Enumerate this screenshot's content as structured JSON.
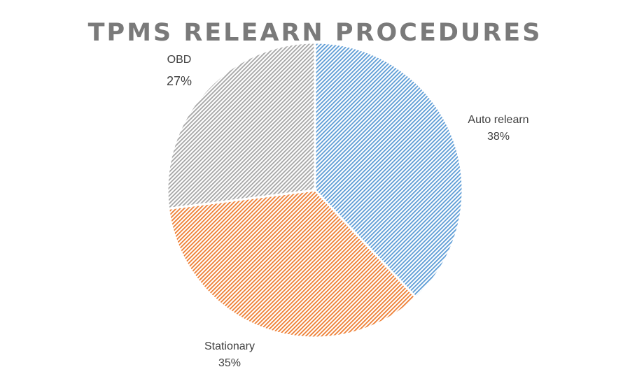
{
  "chart_data": {
    "type": "pie",
    "title": "TPMS RELEARN PROCEDURES",
    "slices": [
      {
        "name": "Auto relearn",
        "value": 38,
        "label": "38%",
        "color": "#5b9bd5"
      },
      {
        "name": "Stationary",
        "value": 35,
        "label": "35%",
        "color": "#ed7d31"
      },
      {
        "name": "OBD",
        "value": 27,
        "label": "27%",
        "color": "#a5a5a5"
      }
    ],
    "start_angle": "12 o'clock",
    "direction": "clockwise",
    "fill_style": "diagonal-hatch",
    "legend": "none"
  }
}
